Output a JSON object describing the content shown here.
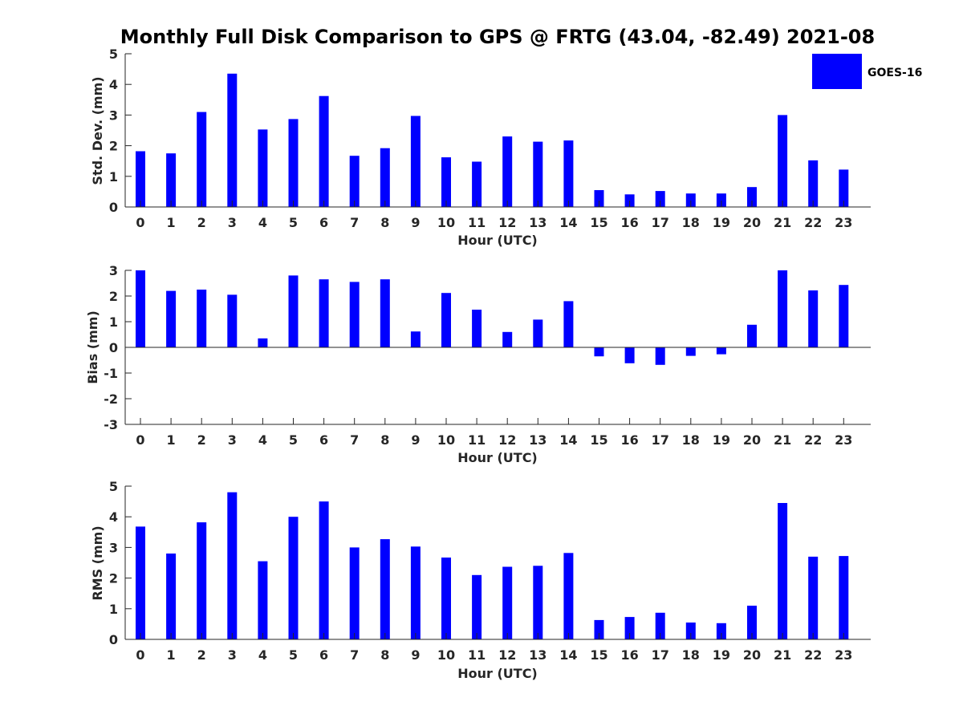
{
  "figure": {
    "title": "Monthly Full Disk Comparison to GPS @ FRTG (43.04, -82.49) 2021-08",
    "legend_label": "GOES-16",
    "bar_color": "#0000ff",
    "legend_placement": "top-right"
  },
  "chart_data": [
    {
      "type": "bar",
      "title": "Monthly Full Disk Comparison to GPS @ FRTG (43.04, -82.49) 2021-08",
      "xlabel": "Hour (UTC)",
      "ylabel": "Std. Dev. (mm)",
      "categories": [
        "0",
        "1",
        "2",
        "3",
        "4",
        "5",
        "6",
        "7",
        "8",
        "9",
        "10",
        "11",
        "12",
        "13",
        "14",
        "15",
        "16",
        "17",
        "18",
        "19",
        "20",
        "21",
        "22",
        "23"
      ],
      "series": [
        {
          "name": "GOES-16",
          "values": [
            1.82,
            1.75,
            3.1,
            4.35,
            2.53,
            2.87,
            3.62,
            1.67,
            1.92,
            2.97,
            1.62,
            1.48,
            2.3,
            2.13,
            2.17,
            0.55,
            0.41,
            0.52,
            0.44,
            0.44,
            0.65,
            3.0,
            1.52,
            1.22
          ]
        }
      ],
      "ylim": [
        0,
        5
      ],
      "yticks": [
        0,
        1,
        2,
        3,
        4,
        5
      ],
      "grid": false,
      "legend": "top-right"
    },
    {
      "type": "bar",
      "xlabel": "Hour (UTC)",
      "ylabel": "Bias (mm)",
      "categories": [
        "0",
        "1",
        "2",
        "3",
        "4",
        "5",
        "6",
        "7",
        "8",
        "9",
        "10",
        "11",
        "12",
        "13",
        "14",
        "15",
        "16",
        "17",
        "18",
        "19",
        "20",
        "21",
        "22",
        "23"
      ],
      "series": [
        {
          "name": "GOES-16",
          "values": [
            3.0,
            2.2,
            2.25,
            2.05,
            0.35,
            2.8,
            2.65,
            2.55,
            2.65,
            0.62,
            2.12,
            1.47,
            0.6,
            1.08,
            1.8,
            -0.35,
            -0.62,
            -0.68,
            -0.33,
            -0.27,
            0.88,
            3.0,
            2.22,
            2.43
          ]
        }
      ],
      "ylim": [
        -3,
        3
      ],
      "yticks": [
        -3,
        -2,
        -1,
        0,
        1,
        2,
        3
      ],
      "grid": false
    },
    {
      "type": "bar",
      "xlabel": "Hour (UTC)",
      "ylabel": "RMS (mm)",
      "categories": [
        "0",
        "1",
        "2",
        "3",
        "4",
        "5",
        "6",
        "7",
        "8",
        "9",
        "10",
        "11",
        "12",
        "13",
        "14",
        "15",
        "16",
        "17",
        "18",
        "19",
        "20",
        "21",
        "22",
        "23"
      ],
      "series": [
        {
          "name": "GOES-16",
          "values": [
            3.68,
            2.8,
            3.82,
            4.8,
            2.55,
            4.0,
            4.5,
            3.0,
            3.27,
            3.03,
            2.67,
            2.1,
            2.37,
            2.4,
            2.82,
            0.63,
            0.73,
            0.87,
            0.55,
            0.53,
            1.1,
            4.45,
            2.7,
            2.72
          ]
        }
      ],
      "ylim": [
        0,
        5
      ],
      "yticks": [
        0,
        1,
        2,
        3,
        4,
        5
      ],
      "grid": false
    }
  ]
}
